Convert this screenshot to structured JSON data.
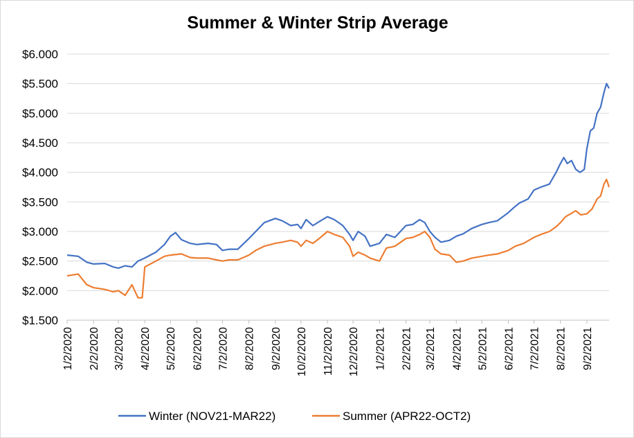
{
  "chart_data": {
    "type": "line",
    "title": "Summer & Winter Strip Average",
    "xlabel": "",
    "ylabel": "",
    "ylim": [
      1.5,
      6.0
    ],
    "y_ticks": [
      "$1.500",
      "$2.000",
      "$2.500",
      "$3.000",
      "$3.500",
      "$4.000",
      "$4.500",
      "$5.000",
      "$5.500",
      "$6.000"
    ],
    "x_ticks": [
      "1/2/2020",
      "2/2/2020",
      "3/2/2020",
      "4/2/2020",
      "5/2/2020",
      "6/2/2020",
      "7/2/2020",
      "8/2/2020",
      "9/2/2020",
      "10/2/2020",
      "11/2/2020",
      "12/2/2020",
      "1/2/2021",
      "2/2/2021",
      "3/2/2021",
      "4/2/2021",
      "5/2/2021",
      "6/2/2021",
      "7/2/2021",
      "8/2/2021",
      "9/2/2021"
    ],
    "x_range": [
      "2020-01-02",
      "2021-09-28"
    ],
    "grid": true,
    "legend": "bottom",
    "series": [
      {
        "name": "Winter (NOV21-MAR22)",
        "color": "#4472C4",
        "x": [
          "2020-01-02",
          "2020-01-15",
          "2020-01-25",
          "2020-02-02",
          "2020-02-15",
          "2020-02-25",
          "2020-03-02",
          "2020-03-10",
          "2020-03-18",
          "2020-03-25",
          "2020-04-02",
          "2020-04-15",
          "2020-04-25",
          "2020-05-02",
          "2020-05-08",
          "2020-05-15",
          "2020-05-25",
          "2020-06-02",
          "2020-06-15",
          "2020-06-25",
          "2020-07-02",
          "2020-07-10",
          "2020-07-20",
          "2020-08-02",
          "2020-08-10",
          "2020-08-20",
          "2020-09-02",
          "2020-09-10",
          "2020-09-20",
          "2020-09-28",
          "2020-10-02",
          "2020-10-08",
          "2020-10-16",
          "2020-10-25",
          "2020-11-02",
          "2020-11-10",
          "2020-11-20",
          "2020-11-28",
          "2020-12-02",
          "2020-12-08",
          "2020-12-16",
          "2020-12-22",
          "2021-01-02",
          "2021-01-10",
          "2021-01-20",
          "2021-02-02",
          "2021-02-10",
          "2021-02-18",
          "2021-02-24",
          "2021-03-02",
          "2021-03-08",
          "2021-03-15",
          "2021-03-25",
          "2021-04-02",
          "2021-04-10",
          "2021-04-20",
          "2021-05-02",
          "2021-05-10",
          "2021-05-20",
          "2021-06-02",
          "2021-06-08",
          "2021-06-15",
          "2021-06-25",
          "2021-07-02",
          "2021-07-10",
          "2021-07-20",
          "2021-07-28",
          "2021-08-02",
          "2021-08-06",
          "2021-08-10",
          "2021-08-15",
          "2021-08-20",
          "2021-08-25",
          "2021-08-30",
          "2021-09-02",
          "2021-09-06",
          "2021-09-10",
          "2021-09-14",
          "2021-09-18",
          "2021-09-22",
          "2021-09-25",
          "2021-09-28"
        ],
        "y": [
          2.6,
          2.58,
          2.48,
          2.45,
          2.46,
          2.4,
          2.38,
          2.42,
          2.4,
          2.5,
          2.55,
          2.65,
          2.78,
          2.92,
          2.98,
          2.86,
          2.8,
          2.78,
          2.8,
          2.78,
          2.68,
          2.7,
          2.7,
          2.88,
          3.0,
          3.15,
          3.22,
          3.18,
          3.1,
          3.12,
          3.05,
          3.2,
          3.1,
          3.18,
          3.25,
          3.2,
          3.1,
          2.95,
          2.85,
          3.0,
          2.92,
          2.75,
          2.8,
          2.95,
          2.9,
          3.1,
          3.12,
          3.2,
          3.15,
          3.0,
          2.9,
          2.82,
          2.85,
          2.92,
          2.96,
          3.05,
          3.12,
          3.15,
          3.18,
          3.32,
          3.4,
          3.48,
          3.55,
          3.7,
          3.75,
          3.8,
          4.0,
          4.15,
          4.25,
          4.15,
          4.2,
          4.05,
          4.0,
          4.05,
          4.4,
          4.7,
          4.75,
          5.0,
          5.1,
          5.35,
          5.5,
          5.42
        ]
      },
      {
        "name": "Summer  (APR22-OCT2)",
        "color": "#ED7D31",
        "x": [
          "2020-01-02",
          "2020-01-15",
          "2020-01-25",
          "2020-02-02",
          "2020-02-15",
          "2020-02-25",
          "2020-03-02",
          "2020-03-10",
          "2020-03-18",
          "2020-03-25",
          "2020-03-30",
          "2020-04-02",
          "2020-04-15",
          "2020-04-25",
          "2020-05-02",
          "2020-05-15",
          "2020-05-25",
          "2020-06-02",
          "2020-06-15",
          "2020-06-25",
          "2020-07-02",
          "2020-07-10",
          "2020-07-20",
          "2020-08-02",
          "2020-08-10",
          "2020-08-20",
          "2020-09-02",
          "2020-09-10",
          "2020-09-20",
          "2020-09-28",
          "2020-10-02",
          "2020-10-08",
          "2020-10-16",
          "2020-10-25",
          "2020-11-02",
          "2020-11-10",
          "2020-11-20",
          "2020-11-28",
          "2020-12-02",
          "2020-12-08",
          "2020-12-16",
          "2020-12-22",
          "2021-01-02",
          "2021-01-10",
          "2021-01-20",
          "2021-02-02",
          "2021-02-10",
          "2021-02-18",
          "2021-02-24",
          "2021-03-02",
          "2021-03-08",
          "2021-03-15",
          "2021-03-25",
          "2021-04-02",
          "2021-04-10",
          "2021-04-20",
          "2021-05-02",
          "2021-05-10",
          "2021-05-20",
          "2021-06-02",
          "2021-06-10",
          "2021-06-20",
          "2021-07-02",
          "2021-07-10",
          "2021-07-20",
          "2021-07-28",
          "2021-08-02",
          "2021-08-08",
          "2021-08-14",
          "2021-08-20",
          "2021-08-26",
          "2021-09-02",
          "2021-09-08",
          "2021-09-14",
          "2021-09-18",
          "2021-09-22",
          "2021-09-25",
          "2021-09-28"
        ],
        "y": [
          2.25,
          2.28,
          2.1,
          2.05,
          2.02,
          1.98,
          2.0,
          1.92,
          2.1,
          1.88,
          1.88,
          2.4,
          2.5,
          2.58,
          2.6,
          2.62,
          2.56,
          2.55,
          2.55,
          2.52,
          2.5,
          2.52,
          2.52,
          2.6,
          2.68,
          2.75,
          2.8,
          2.82,
          2.85,
          2.82,
          2.75,
          2.85,
          2.8,
          2.9,
          3.0,
          2.95,
          2.9,
          2.75,
          2.58,
          2.65,
          2.6,
          2.55,
          2.5,
          2.72,
          2.75,
          2.88,
          2.9,
          2.95,
          3.0,
          2.9,
          2.7,
          2.62,
          2.6,
          2.48,
          2.5,
          2.55,
          2.58,
          2.6,
          2.62,
          2.68,
          2.75,
          2.8,
          2.9,
          2.95,
          3.0,
          3.08,
          3.15,
          3.25,
          3.3,
          3.35,
          3.28,
          3.3,
          3.38,
          3.55,
          3.6,
          3.8,
          3.88,
          3.75
        ]
      }
    ]
  }
}
